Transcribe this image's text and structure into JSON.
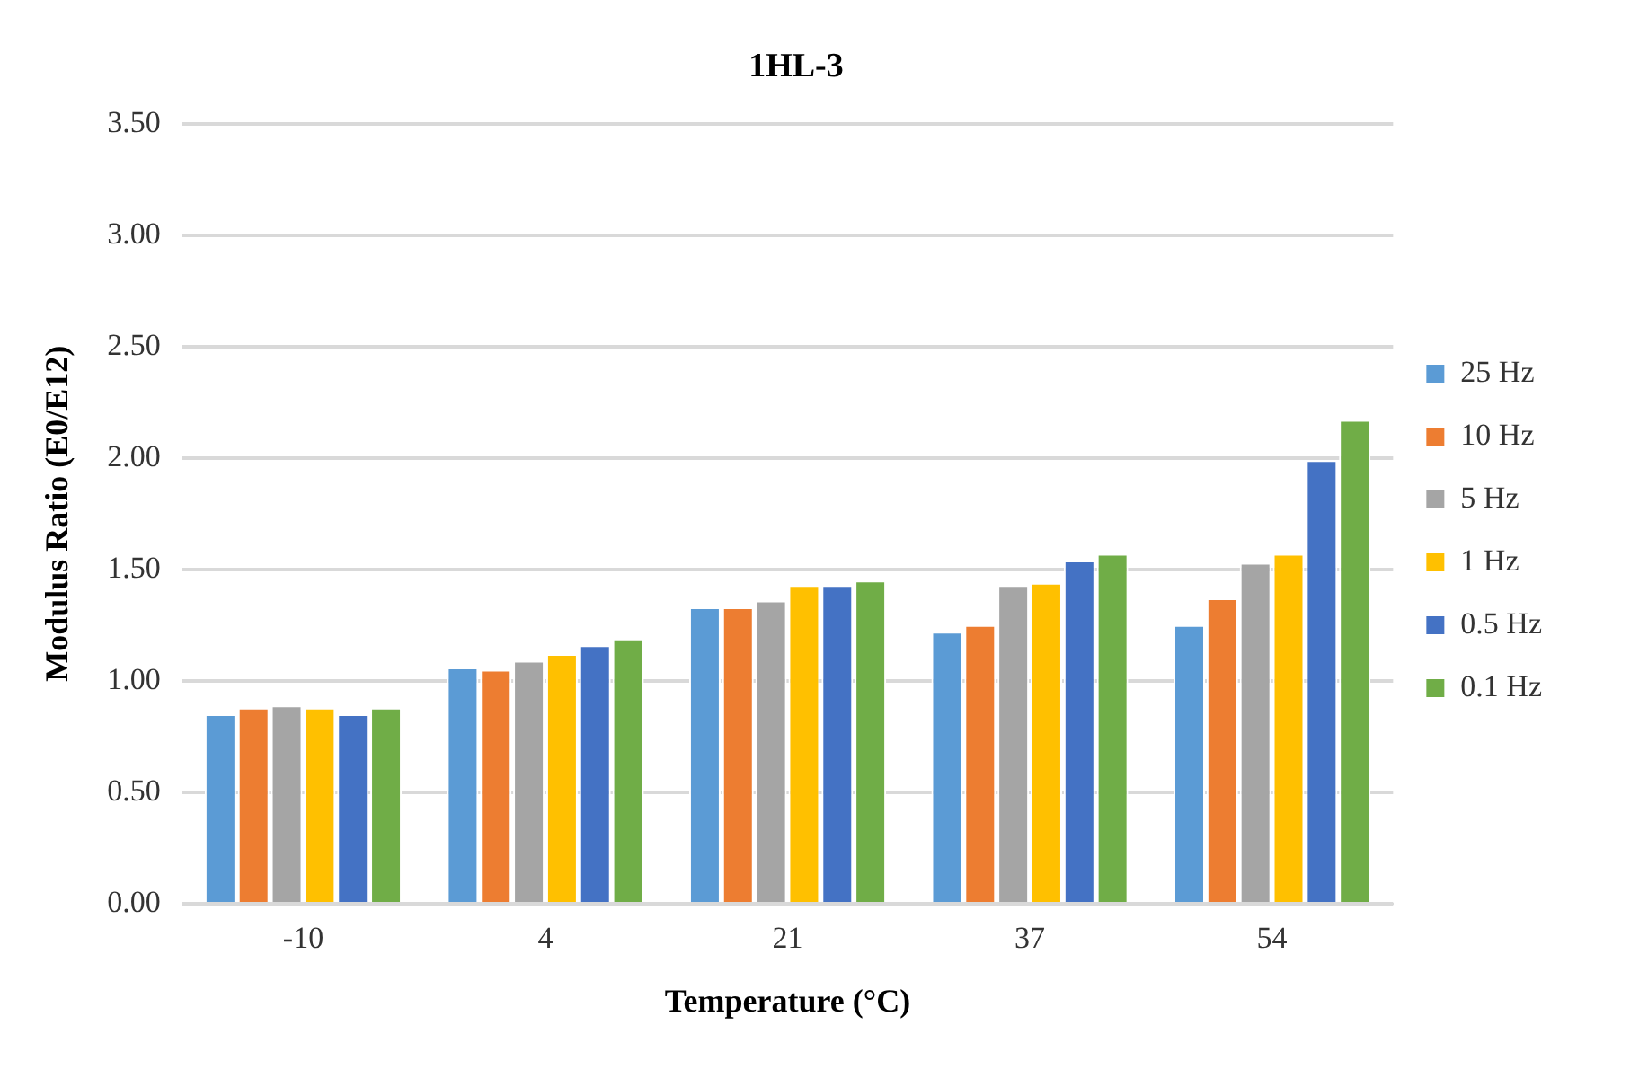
{
  "chart_data": {
    "type": "bar",
    "title": "1HL-3",
    "xlabel": "Temperature (°C)",
    "ylabel": "Modulus Ratio (E0/E12)",
    "categories": [
      "-10",
      "4",
      "21",
      "37",
      "54"
    ],
    "series": [
      {
        "name": "25 Hz",
        "color": "#5b9bd5",
        "values": [
          0.85,
          1.06,
          1.33,
          1.22,
          1.25
        ]
      },
      {
        "name": "10 Hz",
        "color": "#ed7d31",
        "values": [
          0.88,
          1.05,
          1.33,
          1.25,
          1.37
        ]
      },
      {
        "name": "5 Hz",
        "color": "#a5a5a5",
        "values": [
          0.89,
          1.09,
          1.36,
          1.43,
          1.53
        ]
      },
      {
        "name": "1 Hz",
        "color": "#ffc000",
        "values": [
          0.88,
          1.12,
          1.43,
          1.44,
          1.57
        ]
      },
      {
        "name": "0.5 Hz",
        "color": "#4472c4",
        "values": [
          0.85,
          1.16,
          1.43,
          1.54,
          1.99
        ]
      },
      {
        "name": "0.1 Hz",
        "color": "#70ad47",
        "values": [
          0.88,
          1.19,
          1.45,
          1.57,
          2.17
        ]
      }
    ],
    "ylim": [
      0,
      3.5
    ],
    "yticks": [
      {
        "value": 0,
        "label": "0.00"
      },
      {
        "value": 0.5,
        "label": "0.50"
      },
      {
        "value": 1,
        "label": "1.00"
      },
      {
        "value": 1.5,
        "label": "1.50"
      },
      {
        "value": 2,
        "label": "2.00"
      },
      {
        "value": 2.5,
        "label": "2.50"
      },
      {
        "value": 3,
        "label": "3.00"
      },
      {
        "value": 3.5,
        "label": "3.50"
      }
    ],
    "grid": "y",
    "legend": "right"
  }
}
